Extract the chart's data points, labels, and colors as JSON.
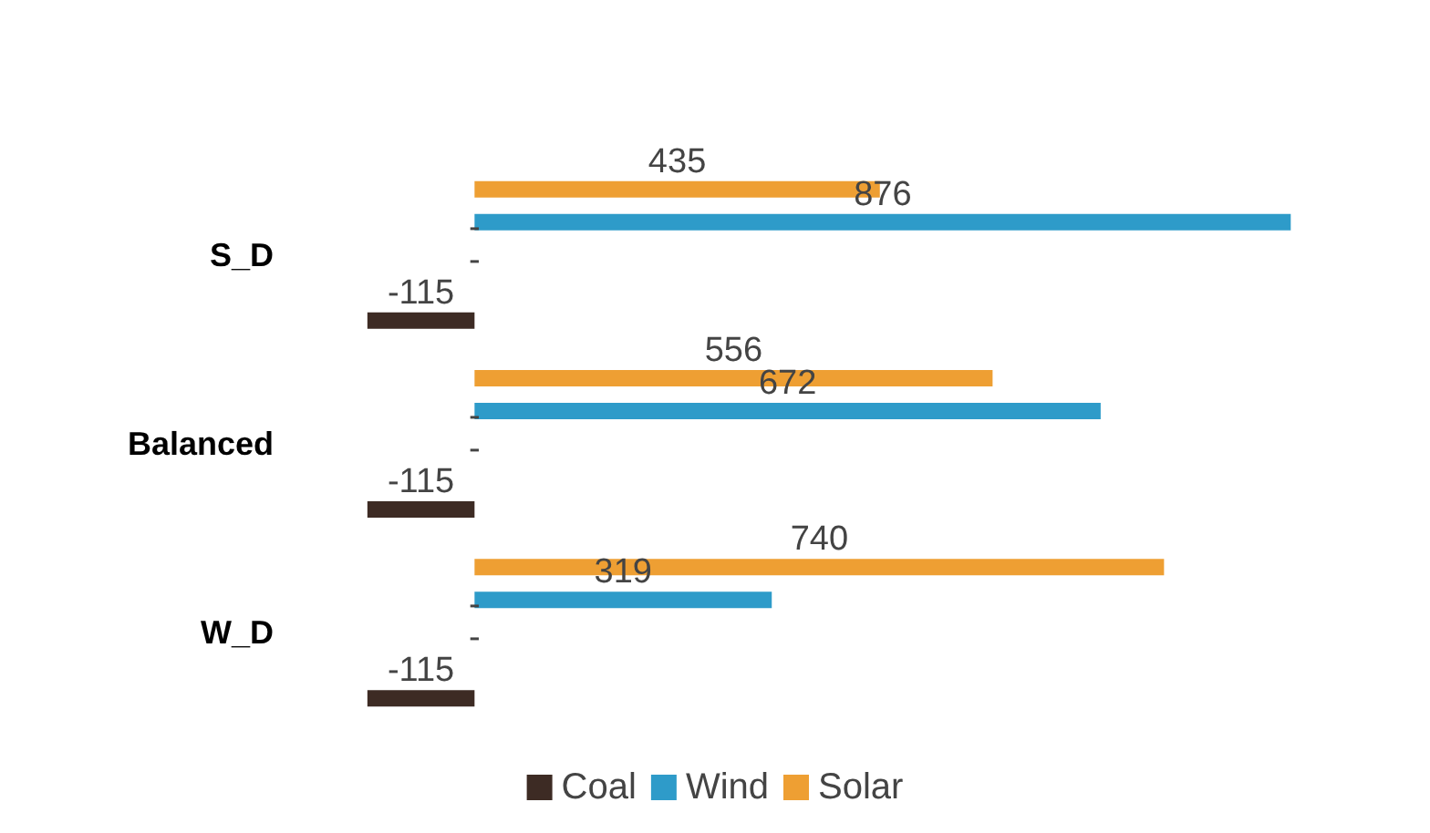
{
  "chart_data": {
    "type": "bar",
    "orientation": "horizontal",
    "categories": [
      "S_D",
      "Balanced",
      "W_D"
    ],
    "series": [
      {
        "name": "Coal",
        "color": "#3d2b24",
        "values": [
          -115,
          -115,
          -115
        ]
      },
      {
        "color": "#c8c8c8",
        "values": [
          0,
          0,
          0
        ],
        "value_labels": [
          "-",
          "-",
          "-"
        ]
      },
      {
        "color": "#c8c8c8",
        "values": [
          0,
          0,
          0
        ],
        "value_labels": [
          "-",
          "-",
          "-"
        ]
      },
      {
        "name": "Wind",
        "color": "#2e9bc9",
        "values": [
          876,
          672,
          319
        ]
      },
      {
        "name": "Solar",
        "color": "#ee9f33",
        "values": [
          435,
          556,
          740
        ]
      }
    ],
    "data_labels": true,
    "legend": "bottom"
  }
}
